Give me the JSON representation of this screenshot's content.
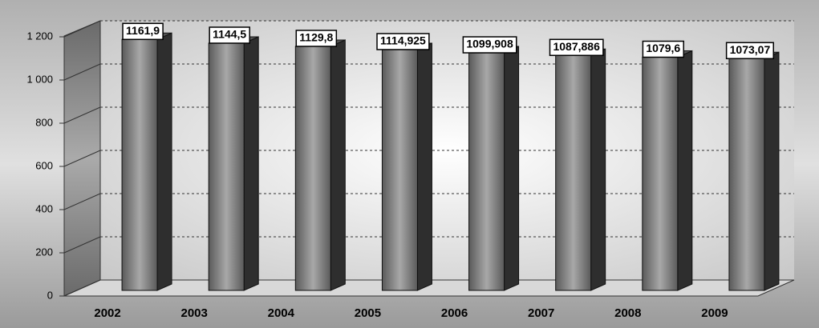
{
  "chart_data": {
    "type": "bar3d",
    "categories": [
      "2002",
      "2003",
      "2004",
      "2005",
      "2006",
      "2007",
      "2008",
      "2009"
    ],
    "values": [
      1161.9,
      1144.5,
      1129.8,
      1114.925,
      1099.908,
      1087.886,
      1079.6,
      1073.07
    ],
    "value_labels": [
      "1161,9",
      "1144,5",
      "1129,8",
      "1114,925",
      "1099,908",
      "1087,886",
      "1079,6",
      "1073,07"
    ],
    "color": "#7a7a7a",
    "ylim": [
      0,
      1200
    ],
    "yticks": [
      0,
      200,
      400,
      600,
      800,
      {
        "value": 1000,
        "label": "1 000"
      },
      {
        "value": 1200,
        "label": "1 200"
      }
    ],
    "grid": true
  }
}
